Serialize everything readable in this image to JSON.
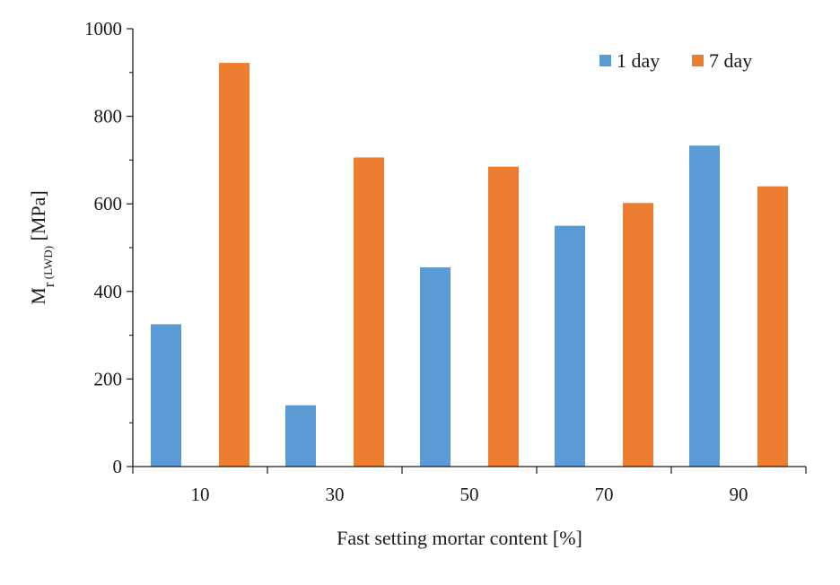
{
  "chart_data": {
    "type": "bar",
    "categories": [
      "10",
      "30",
      "50",
      "70",
      "90"
    ],
    "series": [
      {
        "name": "1 day",
        "color": "#5b9bd5",
        "values": [
          325,
          140,
          455,
          550,
          733
        ]
      },
      {
        "name": "7 day",
        "color": "#ed7d31",
        "values": [
          922,
          706,
          685,
          602,
          640
        ]
      }
    ],
    "xlabel": "Fast setting mortar content [%]",
    "ylabel": {
      "main": "M",
      "sub_r": "r",
      "sub_lwd": " (LWD)",
      "unit": " [MPa]"
    },
    "ylim": [
      0,
      1000
    ],
    "yticks": [
      0,
      200,
      400,
      600,
      800,
      1000
    ],
    "grid": false,
    "legend_position": "top-right"
  }
}
